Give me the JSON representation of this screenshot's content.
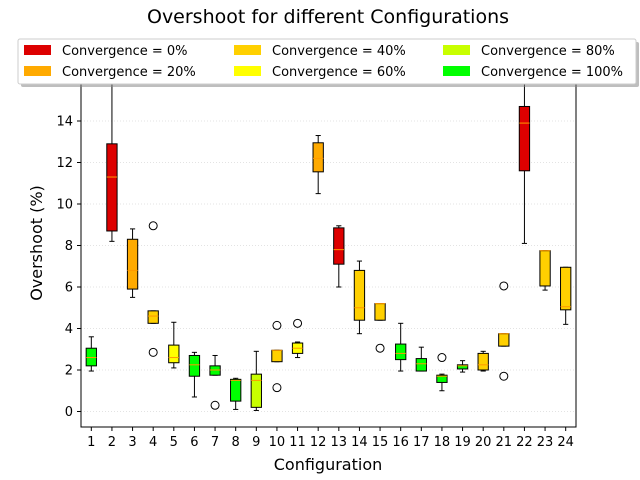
{
  "chart_data": {
    "type": "boxplot",
    "title": "Overshoot for different Configurations",
    "xlabel": "Configuration",
    "ylabel": "Overshoot (%)",
    "ylim": [
      -0.75,
      15.7
    ],
    "yticks": [
      0,
      2,
      4,
      6,
      8,
      10,
      12,
      14
    ],
    "grid": true,
    "legend_position": "top",
    "legend": [
      {
        "label": "Convergence = 0%",
        "color": "#dd0000"
      },
      {
        "label": "Convergence = 20%",
        "color": "#ffaa00"
      },
      {
        "label": "Convergence = 40%",
        "color": "#ffd000"
      },
      {
        "label": "Convergence = 60%",
        "color": "#ffff00"
      },
      {
        "label": "Convergence = 80%",
        "color": "#c8ff00"
      },
      {
        "label": "Convergence = 100%",
        "color": "#00ff00"
      }
    ],
    "boxes": [
      {
        "config": "1",
        "color": "#00ff00",
        "whislo": 1.95,
        "q1": 2.2,
        "med": 2.6,
        "q3": 3.05,
        "whishi": 3.6,
        "fliers": []
      },
      {
        "config": "2",
        "color": "#dd0000",
        "whislo": 8.2,
        "q1": 8.7,
        "med": 11.3,
        "q3": 12.9,
        "whishi": 15.8,
        "fliers": []
      },
      {
        "config": "3",
        "color": "#ffaa00",
        "whislo": 5.5,
        "q1": 5.9,
        "med": 6.8,
        "q3": 8.3,
        "whishi": 8.8,
        "fliers": []
      },
      {
        "config": "4",
        "color": "#ffd000",
        "whislo": 4.25,
        "q1": 4.25,
        "med": 4.6,
        "q3": 4.85,
        "whishi": 4.85,
        "fliers": [
          8.95,
          2.85
        ]
      },
      {
        "config": "5",
        "color": "#ffff00",
        "whislo": 2.1,
        "q1": 2.35,
        "med": 2.6,
        "q3": 3.2,
        "whishi": 4.3,
        "fliers": []
      },
      {
        "config": "6",
        "color": "#00ff00",
        "whislo": 0.7,
        "q1": 1.7,
        "med": 2.25,
        "q3": 2.7,
        "whishi": 2.85,
        "fliers": []
      },
      {
        "config": "7",
        "color": "#00ff00",
        "whislo": 1.75,
        "q1": 1.75,
        "med": 2.0,
        "q3": 2.2,
        "whishi": 2.7,
        "fliers": [
          0.3
        ]
      },
      {
        "config": "8",
        "color": "#00ff00",
        "whislo": 0.1,
        "q1": 0.5,
        "med": 1.5,
        "q3": 1.55,
        "whishi": 1.6,
        "fliers": []
      },
      {
        "config": "9",
        "color": "#c8ff00",
        "whislo": 0.05,
        "q1": 0.2,
        "med": 1.5,
        "q3": 1.8,
        "whishi": 2.9,
        "fliers": []
      },
      {
        "config": "10",
        "color": "#ffd000",
        "whislo": 2.4,
        "q1": 2.4,
        "med": 2.95,
        "q3": 2.95,
        "whishi": 2.95,
        "fliers": [
          4.15,
          1.15
        ]
      },
      {
        "config": "11",
        "color": "#ffff00",
        "whislo": 2.6,
        "q1": 2.8,
        "med": 3.05,
        "q3": 3.3,
        "whishi": 3.35,
        "fliers": [
          4.25
        ]
      },
      {
        "config": "12",
        "color": "#ffaa00",
        "whislo": 10.5,
        "q1": 11.55,
        "med": 12.2,
        "q3": 12.95,
        "whishi": 13.3,
        "fliers": []
      },
      {
        "config": "13",
        "color": "#dd0000",
        "whislo": 6.0,
        "q1": 7.1,
        "med": 7.8,
        "q3": 8.85,
        "whishi": 8.95,
        "fliers": []
      },
      {
        "config": "14",
        "color": "#ffd000",
        "whislo": 3.75,
        "q1": 4.4,
        "med": 5.0,
        "q3": 6.8,
        "whishi": 7.25,
        "fliers": []
      },
      {
        "config": "15",
        "color": "#ffd000",
        "whislo": 4.4,
        "q1": 4.4,
        "med": 5.2,
        "q3": 5.2,
        "whishi": 5.2,
        "fliers": [
          3.05
        ]
      },
      {
        "config": "16",
        "color": "#00ff00",
        "whislo": 1.95,
        "q1": 2.5,
        "med": 2.8,
        "q3": 3.25,
        "whishi": 4.25,
        "fliers": []
      },
      {
        "config": "17",
        "color": "#00ff00",
        "whislo": 1.95,
        "q1": 1.95,
        "med": 2.3,
        "q3": 2.55,
        "whishi": 3.1,
        "fliers": []
      },
      {
        "config": "18",
        "color": "#00ff00",
        "whislo": 1.0,
        "q1": 1.4,
        "med": 1.7,
        "q3": 1.75,
        "whishi": 1.8,
        "fliers": [
          2.6
        ]
      },
      {
        "config": "19",
        "color": "#00ff00",
        "whislo": 1.9,
        "q1": 2.05,
        "med": 2.2,
        "q3": 2.25,
        "whishi": 2.45,
        "fliers": []
      },
      {
        "config": "20",
        "color": "#ffd000",
        "whislo": 1.95,
        "q1": 2.0,
        "med": 2.25,
        "q3": 2.8,
        "whishi": 2.9,
        "fliers": []
      },
      {
        "config": "21",
        "color": "#ffd000",
        "whislo": 3.15,
        "q1": 3.15,
        "med": 3.75,
        "q3": 3.75,
        "whishi": 3.75,
        "fliers": [
          6.05,
          1.7
        ]
      },
      {
        "config": "22",
        "color": "#dd0000",
        "whislo": 8.1,
        "q1": 11.6,
        "med": 13.9,
        "q3": 14.7,
        "whishi": 15.8,
        "fliers": []
      },
      {
        "config": "23",
        "color": "#ffd000",
        "whislo": 5.85,
        "q1": 6.05,
        "med": 7.75,
        "q3": 7.75,
        "whishi": 7.75,
        "fliers": []
      },
      {
        "config": "24",
        "color": "#ffd000",
        "whislo": 4.2,
        "q1": 4.9,
        "med": 5.05,
        "q3": 6.95,
        "whishi": 6.95,
        "fliers": []
      }
    ]
  }
}
